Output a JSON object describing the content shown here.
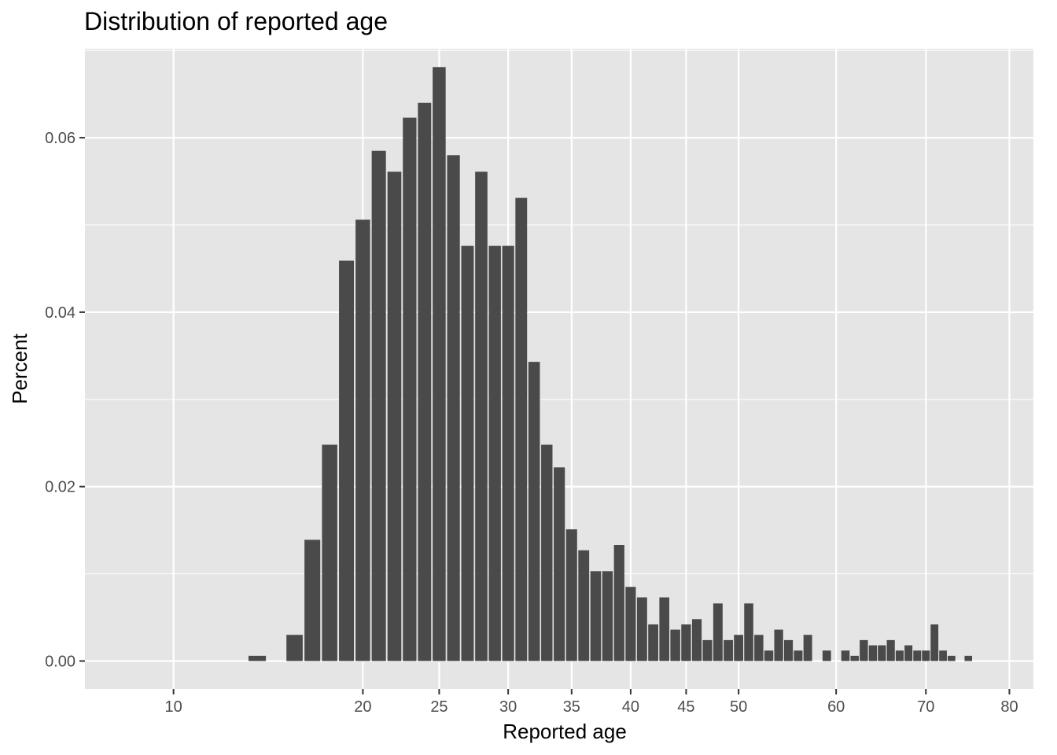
{
  "chart_data": {
    "type": "bar",
    "title": "Distribution of reported age",
    "xlabel": "Reported age",
    "ylabel": "Percent",
    "xlim": [
      6.5,
      83
    ],
    "ylim": [
      -0.0032,
      0.0702
    ],
    "x_ticks": [
      10,
      20,
      25,
      30,
      35,
      40,
      45,
      50,
      60,
      70,
      80
    ],
    "x_tick_labels": [
      "10",
      "20",
      "25",
      "30",
      "35",
      "40",
      "45",
      "50",
      "60",
      "70",
      "80"
    ],
    "y_ticks": [
      0.0,
      0.02,
      0.04,
      0.06
    ],
    "y_tick_labels": [
      "0.00",
      "0.02",
      "0.04",
      "0.06"
    ],
    "x_scale": "sqrt",
    "grid": true,
    "colors": {
      "panel": "#e5e5e5",
      "grid": "#ffffff",
      "bar": "#4a4a4a",
      "tick": "#4d4d4d",
      "text": "#000000"
    },
    "x": [
      14,
      16,
      17,
      18,
      19,
      20,
      21,
      22,
      23,
      24,
      25,
      26,
      27,
      28,
      29,
      30,
      31,
      32,
      33,
      34,
      35,
      36,
      37,
      38,
      39,
      40,
      41,
      42,
      43,
      44,
      45,
      46,
      47,
      48,
      49,
      50,
      51,
      52,
      53,
      54,
      55,
      56,
      57,
      59,
      61,
      62,
      63,
      64,
      65,
      66,
      67,
      68,
      69,
      70,
      71,
      72,
      73,
      75
    ],
    "values": [
      0.0006,
      0.003,
      0.0139,
      0.0248,
      0.0459,
      0.0506,
      0.0585,
      0.0561,
      0.0623,
      0.064,
      0.0681,
      0.058,
      0.0476,
      0.0561,
      0.0476,
      0.0476,
      0.0531,
      0.0343,
      0.0248,
      0.0222,
      0.0151,
      0.0127,
      0.0103,
      0.0103,
      0.0133,
      0.0085,
      0.0073,
      0.0042,
      0.0073,
      0.0036,
      0.0042,
      0.0048,
      0.0024,
      0.0066,
      0.0024,
      0.003,
      0.0066,
      0.003,
      0.0012,
      0.0036,
      0.0024,
      0.0012,
      0.003,
      0.0012,
      0.0012,
      0.0006,
      0.0024,
      0.0018,
      0.0018,
      0.0024,
      0.0012,
      0.0018,
      0.0012,
      0.0012,
      0.0042,
      0.0012,
      0.0006,
      0.0006
    ]
  }
}
